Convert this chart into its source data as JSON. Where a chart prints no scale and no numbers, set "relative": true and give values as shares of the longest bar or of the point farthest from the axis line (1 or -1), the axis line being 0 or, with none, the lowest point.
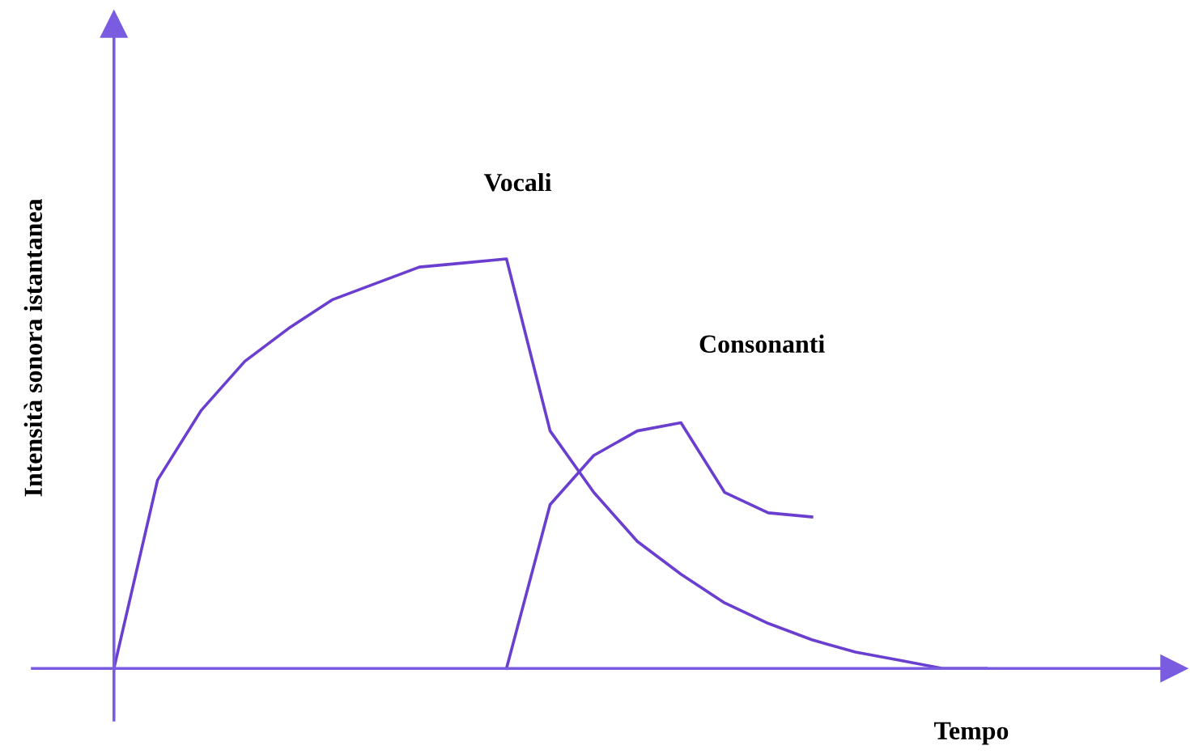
{
  "chart_data": {
    "type": "line",
    "relative": true,
    "xlabel": "Tempo",
    "ylabel": "Intensità sonora istantanea",
    "marker": "none",
    "line_style": "solid",
    "categories": [
      null,
      null,
      null,
      null,
      null,
      null,
      null,
      null,
      null,
      null,
      null,
      null,
      null,
      null,
      null,
      null,
      null,
      null,
      null,
      null,
      null
    ],
    "series": [
      {
        "name": "Vocali",
        "color": "#6a3fcf",
        "values": [
          0,
          0.46,
          0.63,
          0.75,
          0.83,
          0.9,
          0.94,
          0.98,
          0.99,
          1,
          0.58,
          0.43,
          0.31,
          0.23,
          0.16,
          0.11,
          0.07,
          0.04,
          0.02,
          0.0,
          0
        ]
      },
      {
        "name": "Consonanti",
        "color": "#6a3fcf",
        "values": [
          null,
          null,
          null,
          null,
          null,
          null,
          null,
          null,
          null,
          0,
          0.4,
          0.52,
          0.58,
          0.6,
          0.43,
          0.38,
          0.37,
          null,
          null,
          null,
          null
        ]
      }
    ]
  }
}
